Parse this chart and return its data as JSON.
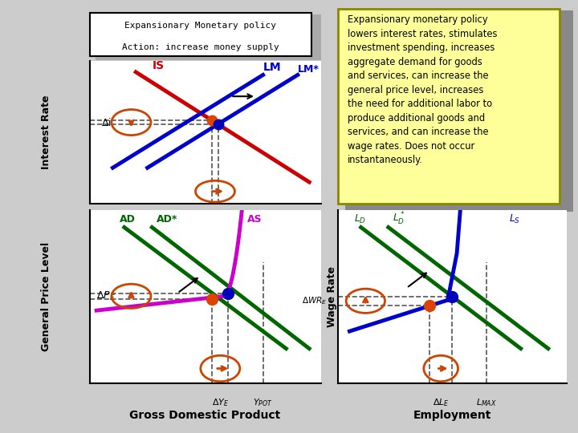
{
  "bg_color": "#d3d3d3",
  "colors": {
    "IS": "#cc0000",
    "LM": "#0000cc",
    "AD": "#006600",
    "AS": "#cc00cc",
    "LD": "#006600",
    "LS": "#0000cc",
    "dot_orange": "#dd4400",
    "dot_blue": "#0000bb",
    "circle": "#cc4400",
    "dashed": "#555555"
  },
  "title_text1": "Expansionary Monetary policy",
  "title_text2": "Action: increase money supply",
  "desc": "Expansionary monetary policy\nlowers interest rates, stimulates\ninvestment spending, increases\naggregate demand for goods\nand services, can increase the\ngeneral price level, increases\nthe need for additional labor to\nproduce additional goods and\nservices, and can increase the\nwage rates. Does not occur\ninstantaneously."
}
